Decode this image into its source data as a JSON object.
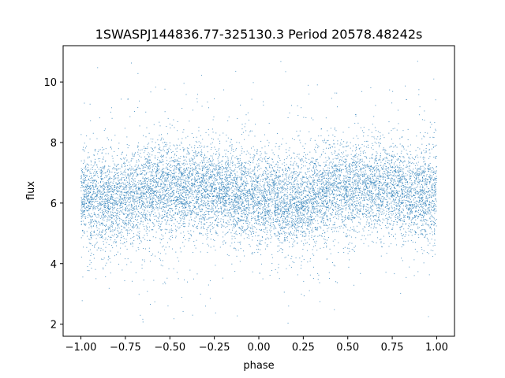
{
  "chart_data": {
    "type": "scatter",
    "title": "1SWASPJ144836.77-325130.3 Period 20578.48242s",
    "xlabel": "phase",
    "ylabel": "flux",
    "xlim": [
      -1.1,
      1.1
    ],
    "ylim": [
      1.6,
      11.2
    ],
    "x_ticks": [
      -1.0,
      -0.75,
      -0.5,
      -0.25,
      0.0,
      0.25,
      0.5,
      0.75,
      1.0
    ],
    "x_tick_labels": [
      "−1.00",
      "−0.75",
      "−0.50",
      "−0.25",
      "0.00",
      "0.25",
      "0.50",
      "0.75",
      "1.00"
    ],
    "y_ticks": [
      2,
      4,
      6,
      8,
      10
    ],
    "y_tick_labels": [
      "2",
      "4",
      "6",
      "8",
      "10"
    ],
    "grid": false,
    "marker_color": "#1f77b4",
    "series": [
      {
        "phase": [
          -1.0,
          -0.9,
          -0.8,
          -0.7,
          -0.6,
          -0.5,
          -0.4,
          -0.3,
          -0.2,
          -0.1,
          0.0,
          0.1,
          0.2,
          0.3,
          0.4,
          0.5,
          0.6,
          0.7,
          0.8,
          0.9,
          1.0
        ],
        "flux_median": [
          6.3,
          6.1,
          6.0,
          6.2,
          6.4,
          6.5,
          6.5,
          6.5,
          6.4,
          6.3,
          6.2,
          6.1,
          6.0,
          6.2,
          6.4,
          6.5,
          6.5,
          6.5,
          6.4,
          6.3,
          6.3
        ]
      }
    ]
  }
}
